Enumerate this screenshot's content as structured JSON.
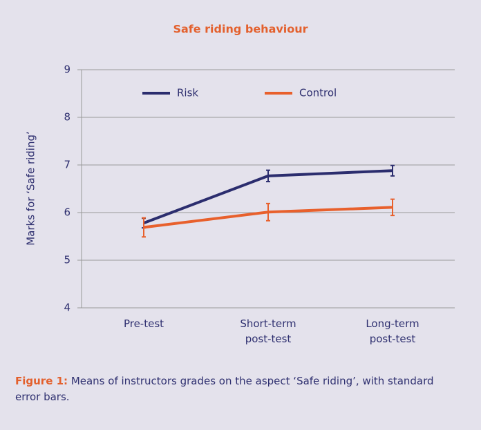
{
  "chart_data": {
    "type": "line",
    "title": "Safe riding behaviour",
    "categories": [
      "Pre-test",
      "Short-term\npost-test",
      "Long-term\npost-test"
    ],
    "series": [
      {
        "name": "Risk",
        "color": "#2b2d6e",
        "values": [
          5.78,
          6.77,
          6.88
        ],
        "errors": [
          0.1,
          0.12,
          0.11
        ]
      },
      {
        "name": "Control",
        "color": "#e8602c",
        "values": [
          5.69,
          6.01,
          6.11
        ],
        "errors": [
          0.2,
          0.18,
          0.17
        ]
      }
    ],
    "ylabel": "Marks for ‘Safe riding’",
    "ylim": [
      4,
      9
    ],
    "yticks": [
      4,
      5,
      6,
      7,
      8,
      9
    ],
    "grid": true,
    "legend": "top"
  },
  "caption": {
    "label": "Figure 1:",
    "text": " Means of instructors grades on the aspect ‘Safe riding’, with standard error bars."
  }
}
